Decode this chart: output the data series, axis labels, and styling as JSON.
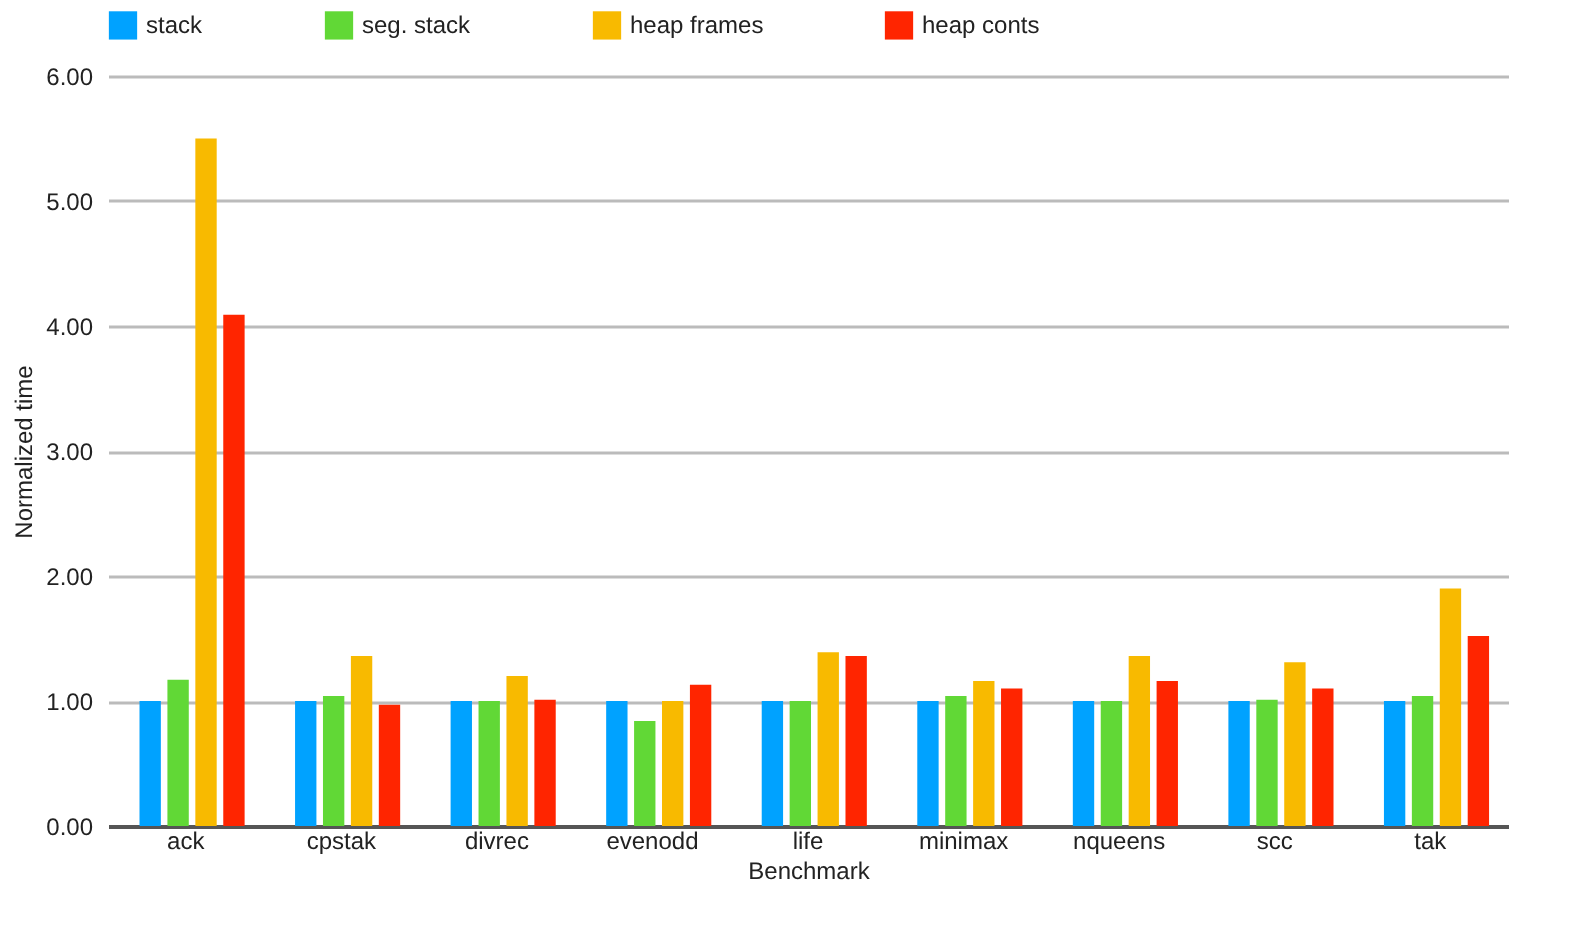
{
  "chart_data": {
    "type": "bar",
    "xlabel": "Benchmark",
    "ylabel": "Normalized time",
    "categories": [
      "ack",
      "cpstak",
      "divrec",
      "evenodd",
      "life",
      "minimax",
      "nqueens",
      "scc",
      "tak"
    ],
    "series": [
      {
        "name": "stack",
        "color": "#00a2ff",
        "values": [
          1.0,
          1.0,
          1.0,
          1.0,
          1.0,
          1.0,
          1.0,
          1.0,
          1.0
        ]
      },
      {
        "name": "seg. stack",
        "color": "#61d836",
        "values": [
          1.17,
          1.04,
          1.0,
          0.84,
          1.0,
          1.04,
          1.0,
          1.01,
          1.04
        ]
      },
      {
        "name": "heap frames",
        "color": "#f8ba00",
        "values": [
          5.5,
          1.36,
          1.2,
          1.0,
          1.39,
          1.16,
          1.36,
          1.31,
          1.9
        ]
      },
      {
        "name": "heap conts",
        "color": "#ff2500",
        "values": [
          4.09,
          0.97,
          1.01,
          1.13,
          1.36,
          1.1,
          1.16,
          1.1,
          1.52
        ]
      }
    ],
    "ylim": [
      0,
      6
    ],
    "yticks": [
      {
        "value": 0,
        "label": "0.00"
      },
      {
        "value": 1,
        "label": "1.00"
      },
      {
        "value": 2,
        "label": "2.00"
      },
      {
        "value": 3,
        "label": "3.00"
      },
      {
        "value": 4,
        "label": "4.00"
      },
      {
        "value": 5,
        "label": "5.00"
      },
      {
        "value": 6,
        "label": "6.00"
      }
    ],
    "grid": "y",
    "legend": "top"
  }
}
